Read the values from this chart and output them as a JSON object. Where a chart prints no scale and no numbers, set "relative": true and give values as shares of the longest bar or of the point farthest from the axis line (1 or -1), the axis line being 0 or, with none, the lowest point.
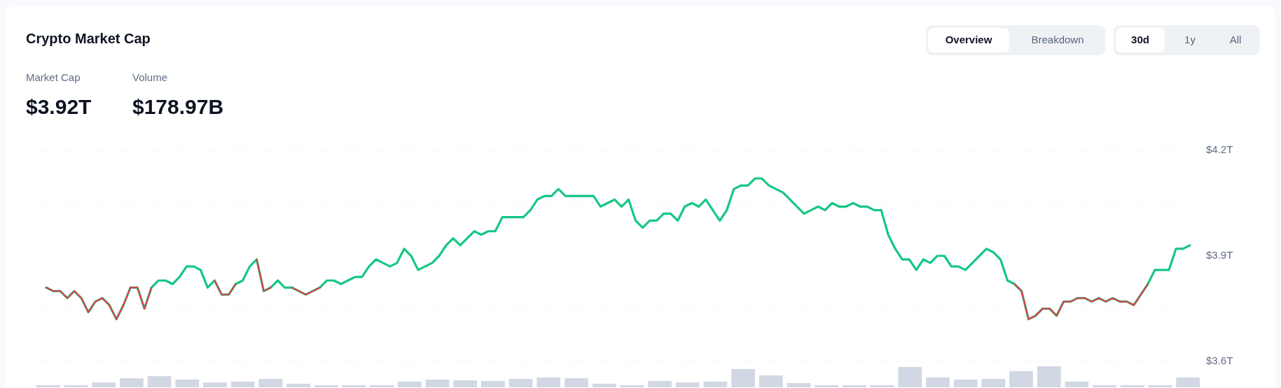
{
  "chart_data": [
    {
      "type": "line",
      "title": "Crypto Market Cap",
      "annotations": [
        "Market Cap",
        "$3.92T",
        "Volume",
        "$178.97B",
        "Overview",
        "Breakdown",
        "30d",
        "1y",
        "All"
      ],
      "categories": [
        null,
        null,
        null,
        null,
        null,
        null,
        null,
        null,
        null,
        null,
        null,
        null,
        null,
        null,
        null,
        null,
        null,
        null,
        null,
        null,
        null,
        null,
        null,
        null,
        null,
        null,
        null,
        null,
        null,
        null,
        null,
        null,
        null,
        null,
        null,
        null,
        null,
        null,
        null,
        null,
        null,
        null,
        null,
        null,
        null,
        null,
        null,
        null,
        null,
        null,
        null,
        null,
        null,
        null,
        null,
        null,
        null,
        null,
        null,
        null,
        null,
        null,
        null,
        null,
        null,
        null,
        null,
        null,
        null,
        null,
        null,
        null,
        null,
        null,
        null,
        null,
        null,
        null,
        null,
        null,
        null,
        null,
        null,
        null,
        null,
        null,
        null,
        null,
        null,
        null,
        null,
        null,
        null,
        null,
        null,
        null,
        null,
        null,
        null,
        null,
        null,
        null,
        null,
        null,
        null,
        null,
        null,
        null,
        null,
        null,
        null,
        null,
        null,
        null,
        null,
        null,
        null,
        null,
        null,
        null,
        null,
        null,
        null,
        null,
        null,
        null,
        null,
        null,
        null,
        null,
        null,
        null,
        null,
        null,
        null,
        null,
        null,
        null,
        null,
        null,
        null,
        null,
        null,
        null,
        null,
        null,
        null,
        null,
        null,
        null,
        null,
        null,
        null,
        null,
        null,
        null,
        null,
        null,
        null,
        null,
        null,
        null,
        null,
        null
      ],
      "series": [
        {
          "color": "#16c784",
          "values": [
            3.81,
            3.8,
            3.8,
            3.78,
            3.8,
            3.78,
            3.74,
            3.77,
            3.78,
            3.76,
            3.72,
            3.76,
            3.81,
            3.81,
            3.75,
            3.81,
            3.83,
            3.83,
            3.82,
            3.84,
            3.87,
            3.87,
            3.86,
            3.81,
            3.83,
            3.79,
            3.79,
            3.82,
            3.83,
            3.87,
            3.89,
            3.8,
            3.81,
            3.83,
            3.81,
            3.81,
            3.8,
            3.79,
            3.8,
            3.81,
            3.83,
            3.83,
            3.82,
            3.83,
            3.84,
            3.84,
            3.87,
            3.89,
            3.88,
            3.87,
            3.88,
            3.92,
            3.9,
            3.86,
            3.87,
            3.88,
            3.9,
            3.93,
            3.95,
            3.93,
            3.95,
            3.97,
            3.96,
            3.97,
            3.97,
            4.01,
            4.01,
            4.01,
            4.01,
            4.03,
            4.06,
            4.07,
            4.07,
            4.09,
            4.07,
            4.07,
            4.07,
            4.07,
            4.07,
            4.04,
            4.05,
            4.06,
            4.04,
            4.06,
            4.0,
            3.98,
            4.0,
            4.0,
            4.02,
            4.02,
            4.0,
            4.04,
            4.05,
            4.04,
            4.06,
            4.03,
            4.0,
            4.03,
            4.09,
            4.1,
            4.1,
            4.12,
            4.12,
            4.1,
            4.09,
            4.08,
            4.06,
            4.04,
            4.02,
            4.03,
            4.04,
            4.03,
            4.05,
            4.04,
            4.04,
            4.05,
            4.04,
            4.04,
            4.03,
            4.03,
            3.96,
            3.92,
            3.89,
            3.89,
            3.86,
            3.89,
            3.88,
            3.9,
            3.9,
            3.87,
            3.87,
            3.86,
            3.88,
            3.9,
            3.92,
            3.91,
            3.89,
            3.83,
            3.82,
            3.8,
            3.72,
            3.73,
            3.75,
            3.75,
            3.73,
            3.77,
            3.77,
            3.78,
            3.78,
            3.77,
            3.78,
            3.77,
            3.78,
            3.77,
            3.77,
            3.76,
            3.79,
            3.82,
            3.86,
            3.86,
            3.86,
            3.92,
            3.92,
            3.93
          ]
        },
        {
          "color": "#ea3943",
          "values": [
            3.81,
            3.8,
            3.8,
            3.78,
            3.8,
            3.78,
            3.74,
            3.77,
            3.78,
            3.76,
            3.72,
            3.76,
            3.81,
            3.81,
            3.75,
            3.81,
            null,
            null,
            null,
            null,
            null,
            null,
            null,
            null,
            3.83,
            3.79,
            3.79,
            3.82,
            null,
            null,
            3.89,
            3.8,
            3.81,
            null,
            null,
            3.81,
            3.8,
            3.79,
            3.8,
            3.81,
            null,
            null,
            null,
            null,
            null,
            null,
            null,
            null,
            null,
            null,
            null,
            null,
            null,
            null,
            null,
            null,
            null,
            null,
            null,
            null,
            null,
            null,
            null,
            null,
            null,
            null,
            null,
            null,
            null,
            null,
            null,
            null,
            null,
            null,
            null,
            null,
            null,
            null,
            null,
            null,
            null,
            null,
            null,
            null,
            null,
            null,
            null,
            null,
            null,
            null,
            null,
            null,
            null,
            null,
            null,
            null,
            null,
            null,
            null,
            null,
            null,
            null,
            null,
            null,
            null,
            null,
            null,
            null,
            null,
            null,
            null,
            null,
            null,
            null,
            null,
            null,
            null,
            null,
            null,
            null,
            null,
            null,
            null,
            null,
            null,
            null,
            null,
            null,
            null,
            null,
            null,
            null,
            null,
            null,
            null,
            null,
            null,
            null,
            3.82,
            3.8,
            3.72,
            3.73,
            3.75,
            3.75,
            3.73,
            3.77,
            3.77,
            3.78,
            3.78,
            3.77,
            3.78,
            3.77,
            3.78,
            3.77,
            3.77,
            3.76,
            3.79,
            3.82,
            null,
            null,
            null,
            null,
            null,
            null
          ]
        }
      ],
      "ylim": [
        3.6,
        4.2
      ],
      "yticks": [
        {
          "value": 3.6,
          "label": "$3.6T"
        },
        {
          "value": 3.75,
          "label": null
        },
        {
          "value": 3.9,
          "label": "$3.9T"
        },
        {
          "value": 4.05,
          "label": null
        },
        {
          "value": 4.2,
          "label": "$4.2T"
        }
      ],
      "grid": "y",
      "tick_labels": "y",
      "marker": "none",
      "line_style": "solid"
    },
    {
      "type": "bar",
      "relative": true,
      "color": "#d1d7e3",
      "tick_labels": false,
      "categories": [
        null,
        null,
        null,
        null,
        null,
        null,
        null,
        null,
        null,
        null,
        null,
        null,
        null,
        null,
        null,
        null,
        null,
        null,
        null,
        null,
        null,
        null,
        null,
        null,
        null,
        null,
        null,
        null,
        null,
        null,
        null,
        null,
        null,
        null,
        null,
        null,
        null,
        null,
        null,
        null,
        null,
        null
      ],
      "values": [
        0.1,
        0.1,
        0.23,
        0.43,
        0.53,
        0.37,
        0.23,
        0.27,
        0.4,
        0.17,
        0.1,
        0.1,
        0.1,
        0.27,
        0.37,
        0.33,
        0.3,
        0.4,
        0.47,
        0.43,
        0.17,
        0.1,
        0.3,
        0.23,
        0.27,
        0.87,
        0.57,
        0.2,
        0.1,
        0.1,
        0.1,
        0.97,
        0.47,
        0.37,
        0.4,
        0.77,
        1,
        0.27,
        0.1,
        0.1,
        0.1,
        0.47
      ]
    }
  ]
}
